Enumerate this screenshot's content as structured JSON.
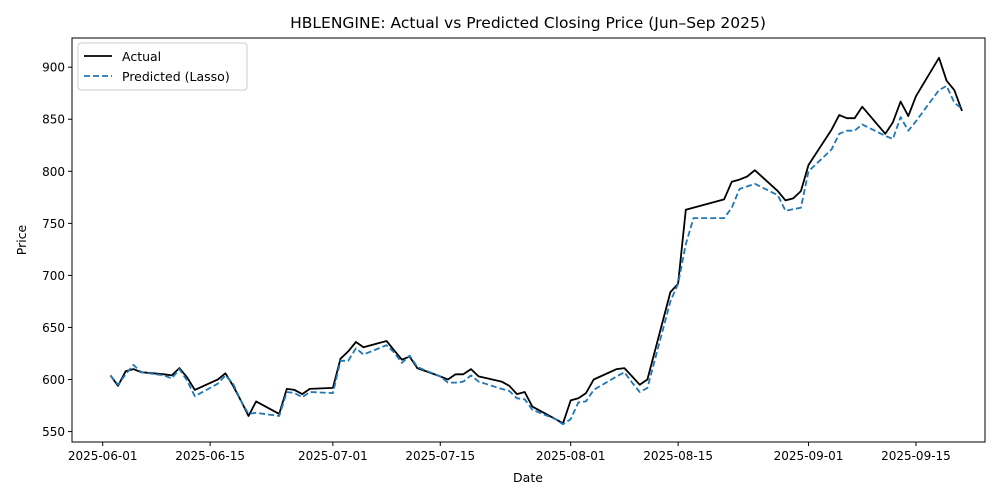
{
  "chart_data": {
    "type": "line",
    "title": "HBLENGINE: Actual vs Predicted Closing Price (Jun–Sep 2025)",
    "xlabel": "Date",
    "ylabel": "Price",
    "x_ticks": [
      "2025-06-01",
      "2025-06-15",
      "2025-07-01",
      "2025-07-15",
      "2025-08-01",
      "2025-08-15",
      "2025-09-01",
      "2025-09-15"
    ],
    "y_ticks": [
      550,
      600,
      650,
      700,
      750,
      800,
      850,
      900
    ],
    "xlim": [
      "2025-05-28",
      "2025-09-24"
    ],
    "ylim": [
      540,
      928
    ],
    "grid": false,
    "legend_position": "top-left",
    "series": [
      {
        "name": "Actual",
        "color": "#000000",
        "style": "solid",
        "points": [
          [
            "2025-06-02",
            604
          ],
          [
            "2025-06-03",
            594
          ],
          [
            "2025-06-04",
            608
          ],
          [
            "2025-06-05",
            610
          ],
          [
            "2025-06-06",
            607
          ],
          [
            "2025-06-09",
            605
          ],
          [
            "2025-06-10",
            604
          ],
          [
            "2025-06-11",
            611
          ],
          [
            "2025-06-12",
            602
          ],
          [
            "2025-06-13",
            590
          ],
          [
            "2025-06-16",
            600
          ],
          [
            "2025-06-17",
            606
          ],
          [
            "2025-06-18",
            594
          ],
          [
            "2025-06-19",
            580
          ],
          [
            "2025-06-20",
            565
          ],
          [
            "2025-06-21",
            579
          ],
          [
            "2025-06-24",
            567
          ],
          [
            "2025-06-25",
            591
          ],
          [
            "2025-06-26",
            590
          ],
          [
            "2025-06-27",
            586
          ],
          [
            "2025-06-28",
            591
          ],
          [
            "2025-07-01",
            592
          ],
          [
            "2025-07-02",
            620
          ],
          [
            "2025-07-03",
            627
          ],
          [
            "2025-07-04",
            636
          ],
          [
            "2025-07-05",
            631
          ],
          [
            "2025-07-08",
            637
          ],
          [
            "2025-07-09",
            628
          ],
          [
            "2025-07-10",
            619
          ],
          [
            "2025-07-11",
            622
          ],
          [
            "2025-07-12",
            611
          ],
          [
            "2025-07-15",
            603
          ],
          [
            "2025-07-16",
            600
          ],
          [
            "2025-07-17",
            605
          ],
          [
            "2025-07-18",
            605
          ],
          [
            "2025-07-19",
            610
          ],
          [
            "2025-07-20",
            603
          ],
          [
            "2025-07-23",
            598
          ],
          [
            "2025-07-24",
            594
          ],
          [
            "2025-07-25",
            586
          ],
          [
            "2025-07-26",
            588
          ],
          [
            "2025-07-27",
            574
          ],
          [
            "2025-07-30",
            562
          ],
          [
            "2025-07-31",
            558
          ],
          [
            "2025-08-01",
            580
          ],
          [
            "2025-08-02",
            582
          ],
          [
            "2025-08-03",
            587
          ],
          [
            "2025-08-04",
            600
          ],
          [
            "2025-08-07",
            610
          ],
          [
            "2025-08-08",
            611
          ],
          [
            "2025-08-09",
            603
          ],
          [
            "2025-08-10",
            595
          ],
          [
            "2025-08-11",
            600
          ],
          [
            "2025-08-14",
            684
          ],
          [
            "2025-08-15",
            692
          ],
          [
            "2025-08-16",
            763
          ],
          [
            "2025-08-21",
            773
          ],
          [
            "2025-08-22",
            790
          ],
          [
            "2025-08-23",
            792
          ],
          [
            "2025-08-24",
            795
          ],
          [
            "2025-08-25",
            801
          ],
          [
            "2025-08-28",
            781
          ],
          [
            "2025-08-29",
            772
          ],
          [
            "2025-08-30",
            774
          ],
          [
            "2025-08-31",
            781
          ],
          [
            "2025-09-01",
            806
          ],
          [
            "2025-09-04",
            840
          ],
          [
            "2025-09-05",
            854
          ],
          [
            "2025-09-06",
            851
          ],
          [
            "2025-09-07",
            851
          ],
          [
            "2025-09-08",
            862
          ],
          [
            "2025-09-11",
            836
          ],
          [
            "2025-09-12",
            847
          ],
          [
            "2025-09-13",
            867
          ],
          [
            "2025-09-14",
            853
          ],
          [
            "2025-09-15",
            872
          ],
          [
            "2025-09-18",
            909
          ],
          [
            "2025-09-19",
            887
          ],
          [
            "2025-09-20",
            878
          ],
          [
            "2025-09-21",
            858
          ]
        ]
      },
      {
        "name": "Predicted (Lasso)",
        "color": "#1f77b4",
        "style": "dashed",
        "points": [
          [
            "2025-06-02",
            604
          ],
          [
            "2025-06-03",
            595
          ],
          [
            "2025-06-04",
            605
          ],
          [
            "2025-06-05",
            614
          ],
          [
            "2025-06-06",
            607
          ],
          [
            "2025-06-09",
            604
          ],
          [
            "2025-06-10",
            601
          ],
          [
            "2025-06-11",
            610
          ],
          [
            "2025-06-12",
            599
          ],
          [
            "2025-06-13",
            584
          ],
          [
            "2025-06-16",
            596
          ],
          [
            "2025-06-17",
            604
          ],
          [
            "2025-06-18",
            596
          ],
          [
            "2025-06-19",
            580
          ],
          [
            "2025-06-20",
            567
          ],
          [
            "2025-06-21",
            568
          ],
          [
            "2025-06-24",
            565
          ],
          [
            "2025-06-25",
            588
          ],
          [
            "2025-06-26",
            587
          ],
          [
            "2025-06-27",
            583
          ],
          [
            "2025-06-28",
            588
          ],
          [
            "2025-07-01",
            587
          ],
          [
            "2025-07-02",
            618
          ],
          [
            "2025-07-03",
            618
          ],
          [
            "2025-07-04",
            630
          ],
          [
            "2025-07-05",
            624
          ],
          [
            "2025-07-08",
            633
          ],
          [
            "2025-07-09",
            626
          ],
          [
            "2025-07-10",
            616
          ],
          [
            "2025-07-11",
            623
          ],
          [
            "2025-07-12",
            612
          ],
          [
            "2025-07-15",
            603
          ],
          [
            "2025-07-16",
            597
          ],
          [
            "2025-07-17",
            597
          ],
          [
            "2025-07-18",
            598
          ],
          [
            "2025-07-19",
            604
          ],
          [
            "2025-07-20",
            598
          ],
          [
            "2025-07-23",
            591
          ],
          [
            "2025-07-24",
            589
          ],
          [
            "2025-07-25",
            582
          ],
          [
            "2025-07-26",
            581
          ],
          [
            "2025-07-27",
            571
          ],
          [
            "2025-07-30",
            562
          ],
          [
            "2025-07-31",
            557
          ],
          [
            "2025-08-01",
            562
          ],
          [
            "2025-08-02",
            578
          ],
          [
            "2025-08-03",
            579
          ],
          [
            "2025-08-04",
            590
          ],
          [
            "2025-08-07",
            603
          ],
          [
            "2025-08-08",
            607
          ],
          [
            "2025-08-09",
            597
          ],
          [
            "2025-08-10",
            588
          ],
          [
            "2025-08-11",
            592
          ],
          [
            "2025-08-14",
            675
          ],
          [
            "2025-08-15",
            692
          ],
          [
            "2025-08-16",
            730
          ],
          [
            "2025-08-17",
            755
          ],
          [
            "2025-08-21",
            755
          ],
          [
            "2025-08-22",
            765
          ],
          [
            "2025-08-23",
            783
          ],
          [
            "2025-08-25",
            788
          ],
          [
            "2025-08-28",
            777
          ],
          [
            "2025-08-29",
            762
          ],
          [
            "2025-08-31",
            765
          ],
          [
            "2025-09-01",
            800
          ],
          [
            "2025-09-04",
            821
          ],
          [
            "2025-09-05",
            836
          ],
          [
            "2025-09-06",
            839
          ],
          [
            "2025-09-07",
            839
          ],
          [
            "2025-09-08",
            845
          ],
          [
            "2025-09-11",
            834
          ],
          [
            "2025-09-12",
            831
          ],
          [
            "2025-09-13",
            852
          ],
          [
            "2025-09-14",
            839
          ],
          [
            "2025-09-15",
            848
          ],
          [
            "2025-09-18",
            878
          ],
          [
            "2025-09-19",
            882
          ],
          [
            "2025-09-20",
            866
          ],
          [
            "2025-09-21",
            860
          ]
        ]
      }
    ]
  }
}
